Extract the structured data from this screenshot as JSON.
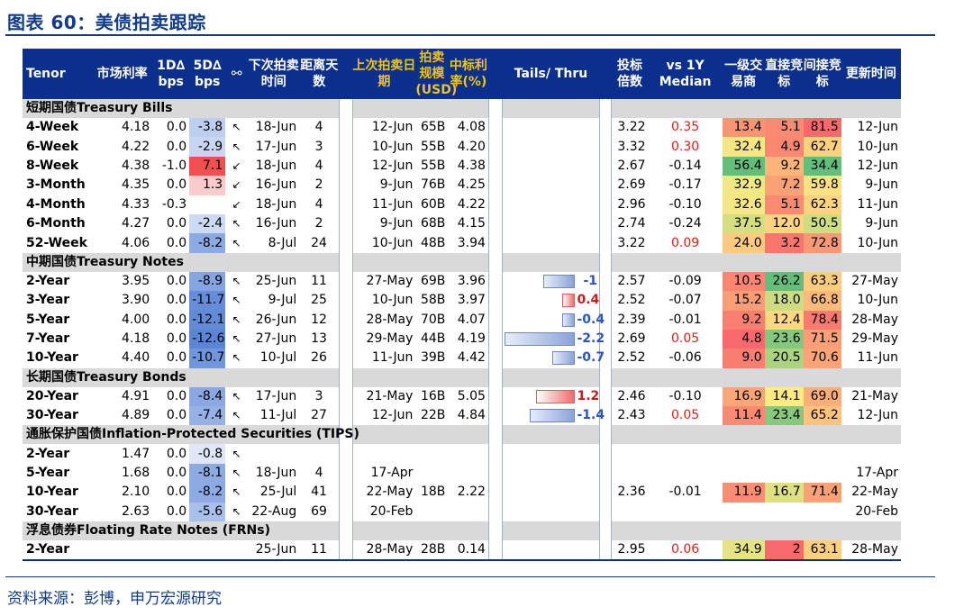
{
  "title": "图表 60：美债拍卖跟踪",
  "source": "资料来源：彭博，申万宏源研究",
  "headers": {
    "tenor": "Tenor",
    "rate": "市场利率",
    "d1": "1D∆ bps",
    "d5": "5D∆ bps",
    "icon": "⚯",
    "next": "下次拍卖时间",
    "days": "距离天数",
    "last": "上次拍卖日期",
    "size": "拍卖规模(USD)",
    "hr": "中标利率(%)",
    "tails": "Tails/ Thru",
    "btc": "投标倍数",
    "vs": "vs 1Y Median",
    "prim": "一级交易商",
    "dir": "直接竞标",
    "ind": "间接竞标",
    "time": "更新时间"
  },
  "colors": {
    "header_bg": "#0b2f8c",
    "header_yellow": "#f2c40f",
    "title": "#123c8a",
    "negative_blue": "#2b55c6",
    "positive_red": "#d01818"
  },
  "sections": [
    {
      "label": "短期国债Treasury Bills",
      "rows": [
        {
          "tenor": "4-Week",
          "rate": "4.18",
          "d1": "0.0",
          "d5": "-3.8",
          "icon": "↖",
          "next": "18-Jun",
          "days": "4",
          "last": "12-Jun",
          "size": "65B",
          "hr": "4.08",
          "tail": null,
          "btc": "3.22",
          "vs": "0.35",
          "prim": "13.4",
          "dir": "5.1",
          "ind": "81.5",
          "time": "12-Jun"
        },
        {
          "tenor": "6-Week",
          "rate": "4.22",
          "d1": "0.0",
          "d5": "-2.9",
          "icon": "↖",
          "next": "17-Jun",
          "days": "3",
          "last": "10-Jun",
          "size": "55B",
          "hr": "4.20",
          "tail": null,
          "btc": "3.32",
          "vs": "0.30",
          "prim": "32.4",
          "dir": "4.9",
          "ind": "62.7",
          "time": "10-Jun"
        },
        {
          "tenor": "8-Week",
          "rate": "4.38",
          "d1": "-1.0",
          "d5": "7.1",
          "icon": "↙",
          "next": "18-Jun",
          "days": "4",
          "last": "12-Jun",
          "size": "55B",
          "hr": "4.38",
          "tail": null,
          "btc": "2.67",
          "vs": "-0.14",
          "prim": "56.4",
          "dir": "9.2",
          "ind": "34.4",
          "time": "12-Jun"
        },
        {
          "tenor": "3-Month",
          "rate": "4.35",
          "d1": "0.0",
          "d5": "1.3",
          "icon": "↙",
          "next": "16-Jun",
          "days": "2",
          "last": "9-Jun",
          "size": "76B",
          "hr": "4.25",
          "tail": null,
          "btc": "2.69",
          "vs": "-0.17",
          "prim": "32.9",
          "dir": "7.2",
          "ind": "59.8",
          "time": "9-Jun"
        },
        {
          "tenor": "4-Month",
          "rate": "4.33",
          "d1": "-0.3",
          "d5": "",
          "icon": "↙",
          "next": "18-Jun",
          "days": "4",
          "last": "11-Jun",
          "size": "60B",
          "hr": "4.22",
          "tail": null,
          "btc": "2.96",
          "vs": "-0.10",
          "prim": "32.6",
          "dir": "5.1",
          "ind": "62.3",
          "time": "11-Jun"
        },
        {
          "tenor": "6-Month",
          "rate": "4.27",
          "d1": "0.0",
          "d5": "-2.4",
          "icon": "↖",
          "next": "16-Jun",
          "days": "2",
          "last": "9-Jun",
          "size": "68B",
          "hr": "4.15",
          "tail": null,
          "btc": "2.74",
          "vs": "-0.24",
          "prim": "37.5",
          "dir": "12.0",
          "ind": "50.5",
          "time": "9-Jun"
        },
        {
          "tenor": "52-Week",
          "rate": "4.06",
          "d1": "0.0",
          "d5": "-8.2",
          "icon": "↖",
          "next": "8-Jul",
          "days": "24",
          "last": "10-Jun",
          "size": "48B",
          "hr": "3.94",
          "tail": null,
          "btc": "3.22",
          "vs": "0.09",
          "prim": "24.0",
          "dir": "3.2",
          "ind": "72.8",
          "time": "10-Jun"
        }
      ]
    },
    {
      "label": "中期国债Treasury Notes",
      "rows": [
        {
          "tenor": "2-Year",
          "rate": "3.95",
          "d1": "0.0",
          "d5": "-8.9",
          "icon": "↖",
          "next": "25-Jun",
          "days": "11",
          "last": "27-May",
          "size": "69B",
          "hr": "3.96",
          "tail": "-1",
          "btc": "2.57",
          "vs": "-0.09",
          "prim": "10.5",
          "dir": "26.2",
          "ind": "63.3",
          "time": "27-May"
        },
        {
          "tenor": "3-Year",
          "rate": "3.90",
          "d1": "0.0",
          "d5": "-11.7",
          "icon": "↖",
          "next": "9-Jul",
          "days": "25",
          "last": "10-Jun",
          "size": "58B",
          "hr": "3.97",
          "tail": "0.4",
          "btc": "2.52",
          "vs": "-0.07",
          "prim": "15.2",
          "dir": "18.0",
          "ind": "66.8",
          "time": "10-Jun"
        },
        {
          "tenor": "5-Year",
          "rate": "4.00",
          "d1": "0.0",
          "d5": "-12.1",
          "icon": "↖",
          "next": "26-Jun",
          "days": "12",
          "last": "28-May",
          "size": "70B",
          "hr": "4.07",
          "tail": "-0.4",
          "btc": "2.39",
          "vs": "-0.01",
          "prim": "9.2",
          "dir": "12.4",
          "ind": "78.4",
          "time": "28-May"
        },
        {
          "tenor": "7-Year",
          "rate": "4.18",
          "d1": "0.0",
          "d5": "-12.6",
          "icon": "↖",
          "next": "27-Jun",
          "days": "13",
          "last": "29-May",
          "size": "44B",
          "hr": "4.19",
          "tail": "-2.2",
          "btc": "2.69",
          "vs": "0.05",
          "prim": "4.8",
          "dir": "23.6",
          "ind": "71.5",
          "time": "29-May"
        },
        {
          "tenor": "10-Year",
          "rate": "4.40",
          "d1": "0.0",
          "d5": "-10.7",
          "icon": "↖",
          "next": "10-Jul",
          "days": "26",
          "last": "11-Jun",
          "size": "39B",
          "hr": "4.42",
          "tail": "-0.7",
          "btc": "2.52",
          "vs": "-0.06",
          "prim": "9.0",
          "dir": "20.5",
          "ind": "70.6",
          "time": "11-Jun"
        }
      ]
    },
    {
      "label": "长期国债Treasury Bonds",
      "rows": [
        {
          "tenor": "20-Year",
          "rate": "4.91",
          "d1": "0.0",
          "d5": "-8.4",
          "icon": "↖",
          "next": "17-Jun",
          "days": "3",
          "last": "21-May",
          "size": "16B",
          "hr": "5.05",
          "tail": "1.2",
          "btc": "2.46",
          "vs": "-0.10",
          "prim": "16.9",
          "dir": "14.1",
          "ind": "69.0",
          "time": "21-May"
        },
        {
          "tenor": "30-Year",
          "rate": "4.89",
          "d1": "0.0",
          "d5": "-7.4",
          "icon": "↖",
          "next": "11-Jul",
          "days": "27",
          "last": "12-Jun",
          "size": "22B",
          "hr": "4.84",
          "tail": "-1.4",
          "btc": "2.43",
          "vs": "0.05",
          "prim": "11.4",
          "dir": "23.4",
          "ind": "65.2",
          "time": "12-Jun"
        }
      ]
    },
    {
      "label": "通胀保护国债Inflation-Protected Securities (TIPS)",
      "rows": [
        {
          "tenor": "2-Year",
          "rate": "1.47",
          "d1": "0.0",
          "d5": "-0.8",
          "icon": "↖",
          "next": "",
          "days": "",
          "last": "",
          "size": "",
          "hr": "",
          "tail": null,
          "btc": "",
          "vs": "",
          "prim": "",
          "dir": "",
          "ind": "",
          "time": ""
        },
        {
          "tenor": "5-Year",
          "rate": "1.68",
          "d1": "0.0",
          "d5": "-8.1",
          "icon": "↖",
          "next": "18-Jun",
          "days": "4",
          "last": "17-Apr",
          "size": "",
          "hr": "",
          "tail": null,
          "btc": "",
          "vs": "",
          "prim": "",
          "dir": "",
          "ind": "",
          "time": "17-Apr"
        },
        {
          "tenor": "10-Year",
          "rate": "2.10",
          "d1": "0.0",
          "d5": "-8.2",
          "icon": "↖",
          "next": "25-Jul",
          "days": "41",
          "last": "22-May",
          "size": "18B",
          "hr": "2.22",
          "tail": null,
          "btc": "2.36",
          "vs": "-0.01",
          "prim": "11.9",
          "dir": "16.7",
          "ind": "71.4",
          "time": "22-May"
        },
        {
          "tenor": "30-Year",
          "rate": "2.63",
          "d1": "0.0",
          "d5": "-5.6",
          "icon": "↖",
          "next": "22-Aug",
          "days": "69",
          "last": "20-Feb",
          "size": "",
          "hr": "",
          "tail": null,
          "btc": "",
          "vs": "",
          "prim": "",
          "dir": "",
          "ind": "",
          "time": "20-Feb"
        }
      ]
    },
    {
      "label": "浮息债券Floating Rate Notes (FRNs)",
      "rows": [
        {
          "tenor": "2-Year",
          "rate": "",
          "d1": "",
          "d5": "",
          "icon": "",
          "next": "25-Jun",
          "days": "11",
          "last": "28-May",
          "size": "28B",
          "hr": "0.14",
          "tail": null,
          "btc": "2.95",
          "vs": "0.06",
          "prim": "34.9",
          "dir": "2",
          "ind": "63.1",
          "time": "28-May"
        }
      ]
    }
  ]
}
